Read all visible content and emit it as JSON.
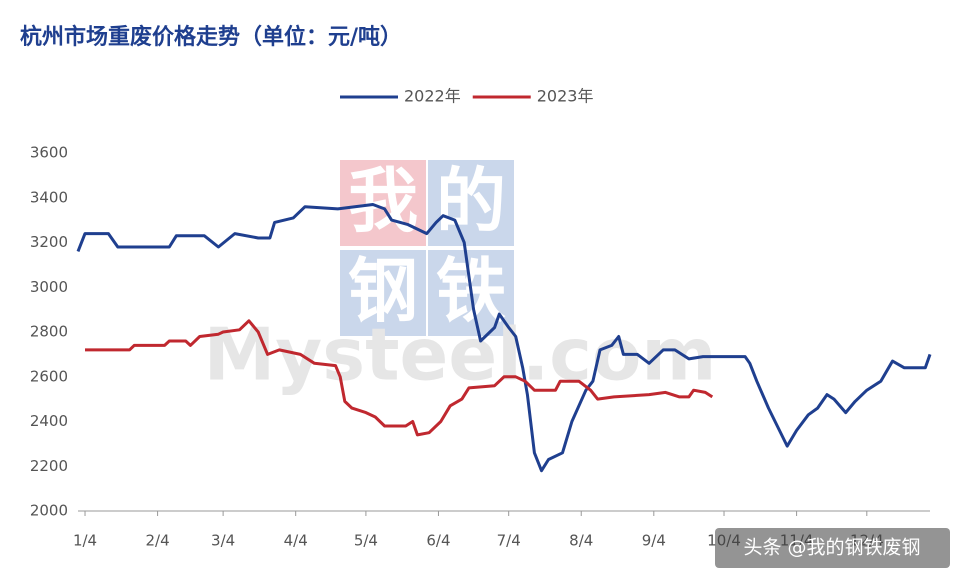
{
  "chart_data": {
    "type": "line",
    "title": "杭州市场重废价格走势（单位：元/吨）",
    "watermark": [
      "我",
      "的",
      "钢",
      "铁"
    ],
    "watermark_text": "Mysteel.com",
    "source_badge": "头条 @我的钢铁废钢",
    "xlim": [
      1,
      365
    ],
    "xticks": [
      {
        "value": 4,
        "label": "1/4"
      },
      {
        "value": 35,
        "label": "2/4"
      },
      {
        "value": 63,
        "label": "3/4"
      },
      {
        "value": 94,
        "label": "4/4"
      },
      {
        "value": 124,
        "label": "5/4"
      },
      {
        "value": 155,
        "label": "6/4"
      },
      {
        "value": 185,
        "label": "7/4"
      },
      {
        "value": 216,
        "label": "8/4"
      },
      {
        "value": 247,
        "label": "9/4"
      },
      {
        "value": 277,
        "label": "10/4"
      },
      {
        "value": 308,
        "label": "11/4"
      },
      {
        "value": 338,
        "label": "12/4"
      }
    ],
    "ylim": [
      2000,
      3600
    ],
    "yticks": [
      2000,
      2200,
      2400,
      2600,
      2800,
      3000,
      3200,
      3400,
      3600
    ],
    "grid": false,
    "legend": "top",
    "series": [
      {
        "name": "2022年",
        "color": "#1f3f8f",
        "x": [
          1,
          4,
          14,
          18,
          40,
          43,
          55,
          61,
          68,
          78,
          83,
          85,
          93,
          98,
          112,
          127,
          132,
          135,
          142,
          150,
          154,
          157,
          162,
          166,
          170,
          173,
          179,
          181,
          185,
          188,
          191,
          193,
          196,
          199,
          202,
          208,
          212,
          218,
          221,
          224,
          229,
          232,
          234,
          240,
          245,
          251,
          256,
          262,
          268,
          286,
          288,
          291,
          296,
          304,
          308,
          313,
          317,
          321,
          324,
          329,
          333,
          338,
          344,
          349,
          354,
          363,
          365
        ],
        "values": [
          3160,
          3240,
          3240,
          3180,
          3180,
          3230,
          3230,
          3180,
          3240,
          3220,
          3220,
          3290,
          3310,
          3360,
          3350,
          3370,
          3350,
          3300,
          3280,
          3240,
          3290,
          3320,
          3300,
          3200,
          2900,
          2760,
          2820,
          2880,
          2820,
          2780,
          2640,
          2520,
          2260,
          2180,
          2230,
          2260,
          2400,
          2540,
          2580,
          2720,
          2740,
          2780,
          2700,
          2700,
          2660,
          2720,
          2720,
          2680,
          2690,
          2690,
          2660,
          2580,
          2460,
          2290,
          2360,
          2430,
          2460,
          2520,
          2500,
          2440,
          2490,
          2540,
          2580,
          2670,
          2640,
          2640,
          2700
        ]
      },
      {
        "name": "2023年",
        "color": "#c0282f",
        "x": [
          4,
          23,
          25,
          38,
          40,
          47,
          49,
          53,
          61,
          63,
          70,
          74,
          78,
          82,
          87,
          96,
          102,
          111,
          113,
          115,
          118,
          124,
          128,
          132,
          141,
          144,
          146,
          151,
          156,
          160,
          165,
          168,
          179,
          183,
          188,
          192,
          196,
          205,
          207,
          215,
          220,
          223,
          230,
          245,
          252,
          258,
          262,
          264,
          269,
          272
        ],
        "values": [
          2720,
          2720,
          2740,
          2740,
          2760,
          2760,
          2740,
          2780,
          2790,
          2800,
          2810,
          2850,
          2800,
          2700,
          2720,
          2700,
          2660,
          2650,
          2600,
          2490,
          2460,
          2440,
          2420,
          2380,
          2380,
          2400,
          2340,
          2350,
          2400,
          2470,
          2500,
          2550,
          2560,
          2600,
          2600,
          2580,
          2540,
          2540,
          2580,
          2580,
          2540,
          2500,
          2510,
          2520,
          2530,
          2510,
          2510,
          2540,
          2530,
          2510
        ]
      }
    ]
  }
}
